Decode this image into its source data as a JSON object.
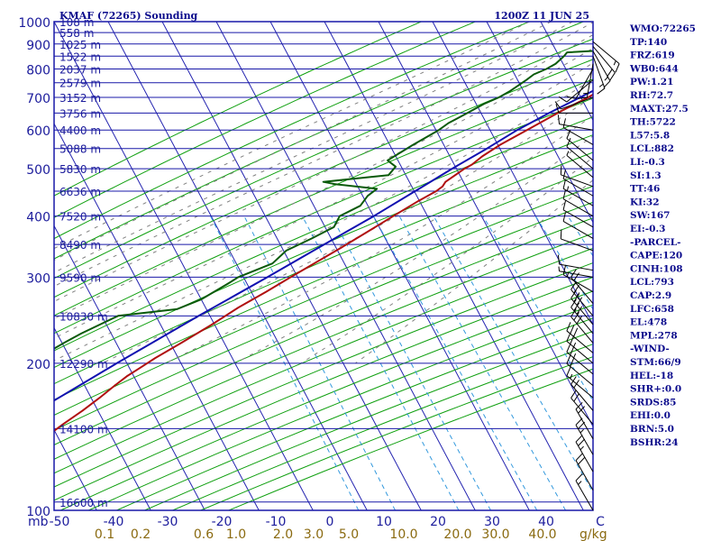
{
  "header": {
    "station": "KMAF (72265) Sounding",
    "time": "1200Z 11 JUN 25"
  },
  "colors": {
    "frame": "#1818a8",
    "isotherm": "#2424b0",
    "dry_adiabat": "#10a010",
    "moist_adiabat": "#808080",
    "mixing_ratio": "#3399dd",
    "temperature": "#b01010",
    "dewpoint": "#0a5a0a",
    "parcel": "#1010b0",
    "wind": "#000000",
    "text": "#0a0a8c",
    "mixing_label": "#8a6a10"
  },
  "chart_data": {
    "type": "skew-t",
    "title": "KMAF (72265) Sounding",
    "x_unit": "C",
    "y_unit": "mb",
    "ylim": [
      1000,
      100
    ],
    "xlim_surface": [
      -50,
      55
    ],
    "isobars": [
      100,
      200,
      300,
      400,
      500,
      600,
      700,
      800,
      900,
      1000
    ],
    "isotherm_labels": [
      "-50",
      "-40",
      "-30",
      "-20",
      "-10",
      "0",
      "10",
      "20",
      "30",
      "40",
      "C"
    ],
    "pressure_axis_label": "mb",
    "height_levels": [
      {
        "p": 104,
        "label": "16600 m"
      },
      {
        "p": 147,
        "label": "14100 m"
      },
      {
        "p": 200,
        "label": "12290 m"
      },
      {
        "p": 250,
        "label": "10830 m"
      },
      {
        "p": 300,
        "label": "9590 m"
      },
      {
        "p": 350,
        "label": "8490 m"
      },
      {
        "p": 400,
        "label": "7520 m"
      },
      {
        "p": 450,
        "label": "6636 m"
      },
      {
        "p": 500,
        "label": "5830 m"
      },
      {
        "p": 550,
        "label": "5088 m"
      },
      {
        "p": 600,
        "label": "4400 m"
      },
      {
        "p": 650,
        "label": "3756 m"
      },
      {
        "p": 700,
        "label": "3152 m"
      },
      {
        "p": 750,
        "label": "2579 m"
      },
      {
        "p": 800,
        "label": "2037 m"
      },
      {
        "p": 850,
        "label": "1522 m"
      },
      {
        "p": 900,
        "label": "1025 m"
      },
      {
        "p": 950,
        "label": "558 m"
      },
      {
        "p": 1000,
        "label": "108 m"
      }
    ],
    "mixing_ratio_labels": [
      "0.1",
      "0.2",
      "0.6",
      "1.0",
      "2.0",
      "3.0",
      "5.0",
      "10.0",
      "20.0",
      "30.0",
      "40.0"
    ],
    "mixing_ratio_unit": "g/kg",
    "mixing_ratio_values": [
      0.1,
      0.2,
      0.6,
      1.0,
      2.0,
      3.0,
      5.0,
      10.0,
      20.0,
      30.0,
      40.0
    ],
    "series": [
      {
        "key": "temperature",
        "points": [
          [
            916,
            23.5
          ],
          [
            900,
            22.5
          ],
          [
            860,
            19.5
          ],
          [
            830,
            17.5
          ],
          [
            800,
            15.5
          ],
          [
            760,
            12.7
          ],
          [
            720,
            9.6
          ],
          [
            700,
            8.3
          ],
          [
            660,
            5.0
          ],
          [
            640,
            3.4
          ],
          [
            600,
            0.2
          ],
          [
            560,
            -3.3
          ],
          [
            530,
            -5.5
          ],
          [
            510,
            -6.6
          ],
          [
            500,
            -7.6
          ],
          [
            470,
            -9.8
          ],
          [
            460,
            -9.9
          ],
          [
            450,
            -10.6
          ],
          [
            430,
            -12.9
          ],
          [
            400,
            -16.1
          ],
          [
            370,
            -19.5
          ],
          [
            345,
            -22.6
          ],
          [
            320,
            -26.1
          ],
          [
            300,
            -29.1
          ],
          [
            280,
            -32.2
          ],
          [
            260,
            -35.8
          ],
          [
            240,
            -39.0
          ],
          [
            220,
            -42.9
          ],
          [
            205,
            -46.2
          ],
          [
            195,
            -48.2
          ],
          [
            188,
            -49.7
          ],
          [
            180,
            -51.0
          ],
          [
            170,
            -52.6
          ],
          [
            160,
            -54.5
          ],
          [
            150,
            -56.8
          ],
          [
            140,
            -59.0
          ],
          [
            130,
            -62.2
          ],
          [
            126,
            -63.2
          ],
          [
            119,
            -62.5
          ],
          [
            112,
            -60.3
          ],
          [
            106,
            -58.5
          ],
          [
            101,
            -56.8
          ]
        ]
      },
      {
        "key": "dewpoint",
        "points": [
          [
            916,
            13.0
          ],
          [
            900,
            12.5
          ],
          [
            880,
            12.1
          ],
          [
            865,
            0.0
          ],
          [
            850,
            -0.2
          ],
          [
            820,
            -1.0
          ],
          [
            800,
            -2.2
          ],
          [
            780,
            -4.0
          ],
          [
            760,
            -4.8
          ],
          [
            720,
            -6.8
          ],
          [
            700,
            -8.2
          ],
          [
            680,
            -10.2
          ],
          [
            650,
            -12.5
          ],
          [
            620,
            -15.0
          ],
          [
            600,
            -16.1
          ],
          [
            560,
            -19.4
          ],
          [
            520,
            -22.6
          ],
          [
            505,
            -20.5
          ],
          [
            485,
            -21.0
          ],
          [
            470,
            -32.4
          ],
          [
            465,
            -30.0
          ],
          [
            455,
            -21.8
          ],
          [
            440,
            -22.8
          ],
          [
            420,
            -23.2
          ],
          [
            400,
            -26.0
          ],
          [
            380,
            -26.0
          ],
          [
            360,
            -29.0
          ],
          [
            340,
            -32.5
          ],
          [
            320,
            -33.8
          ],
          [
            300,
            -38.8
          ],
          [
            290,
            -40.2
          ],
          [
            270,
            -43.5
          ],
          [
            258,
            -47.0
          ],
          [
            250,
            -57.2
          ],
          [
            240,
            -59.7
          ],
          [
            230,
            -62.3
          ],
          [
            220,
            -64.6
          ],
          [
            210,
            -66.8
          ],
          [
            200,
            -68.4
          ],
          [
            190,
            -70.5
          ],
          [
            182,
            -70.8
          ],
          [
            174,
            -71.2
          ],
          [
            165,
            -71.2
          ],
          [
            160,
            -72.5
          ],
          [
            150,
            -74.8
          ],
          [
            140,
            -77.6
          ],
          [
            130,
            -80.0
          ],
          [
            125,
            -80.8
          ],
          [
            119,
            -79.9
          ],
          [
            113,
            -78.3
          ],
          [
            108,
            -77.1
          ],
          [
            103,
            -75.6
          ],
          [
            100,
            -74.5
          ]
        ]
      },
      {
        "key": "parcel",
        "points": [
          [
            890,
            21.7
          ],
          [
            880,
            19.0
          ],
          [
            860,
            16.9
          ],
          [
            840,
            15.3
          ],
          [
            820,
            15.3
          ],
          [
            800,
            14.3
          ],
          [
            750,
            10.8
          ],
          [
            700,
            6.8
          ],
          [
            650,
            2.6
          ],
          [
            600,
            -1.6
          ],
          [
            550,
            -5.4
          ],
          [
            500,
            -9.9
          ],
          [
            450,
            -14.5
          ],
          [
            400,
            -19.7
          ],
          [
            350,
            -26.1
          ],
          [
            300,
            -33.4
          ],
          [
            250,
            -42.3
          ],
          [
            200,
            -52.8
          ],
          [
            160,
            -62.9
          ],
          [
            130,
            -71.5
          ],
          [
            110,
            -78.5
          ]
        ]
      }
    ],
    "wind_barbs": [
      {
        "p": 910,
        "dir": 130,
        "spd": 15
      },
      {
        "p": 890,
        "dir": 140,
        "spd": 20
      },
      {
        "p": 870,
        "dir": 150,
        "spd": 15
      },
      {
        "p": 850,
        "dir": 160,
        "spd": 15
      },
      {
        "p": 820,
        "dir": 190,
        "spd": 15
      },
      {
        "p": 800,
        "dir": 210,
        "spd": 10
      },
      {
        "p": 760,
        "dir": 230,
        "spd": 10
      },
      {
        "p": 700,
        "dir": 250,
        "spd": 10
      },
      {
        "p": 650,
        "dir": 270,
        "spd": 10
      },
      {
        "p": 600,
        "dir": 280,
        "spd": 10
      },
      {
        "p": 560,
        "dir": 300,
        "spd": 10
      },
      {
        "p": 520,
        "dir": 310,
        "spd": 10
      },
      {
        "p": 500,
        "dir": 310,
        "spd": 10
      },
      {
        "p": 480,
        "dir": 310,
        "spd": 5
      },
      {
        "p": 460,
        "dir": 290,
        "spd": 10
      },
      {
        "p": 440,
        "dir": 300,
        "spd": 10
      },
      {
        "p": 420,
        "dir": 300,
        "spd": 15
      },
      {
        "p": 400,
        "dir": 300,
        "spd": 10
      },
      {
        "p": 380,
        "dir": 300,
        "spd": 10
      },
      {
        "p": 360,
        "dir": 300,
        "spd": 10
      },
      {
        "p": 340,
        "dir": 290,
        "spd": 10
      },
      {
        "p": 310,
        "dir": 280,
        "spd": 10
      },
      {
        "p": 300,
        "dir": 280,
        "spd": 5
      },
      {
        "p": 280,
        "dir": 300,
        "spd": 15
      },
      {
        "p": 265,
        "dir": 320,
        "spd": 20
      },
      {
        "p": 250,
        "dir": 320,
        "spd": 25
      },
      {
        "p": 240,
        "dir": 320,
        "spd": 30
      },
      {
        "p": 230,
        "dir": 320,
        "spd": 30
      },
      {
        "p": 220,
        "dir": 320,
        "spd": 30
      },
      {
        "p": 210,
        "dir": 310,
        "spd": 30
      },
      {
        "p": 200,
        "dir": 310,
        "spd": 25
      },
      {
        "p": 190,
        "dir": 310,
        "spd": 25
      },
      {
        "p": 180,
        "dir": 310,
        "spd": 20
      },
      {
        "p": 170,
        "dir": 310,
        "spd": 15
      },
      {
        "p": 160,
        "dir": 320,
        "spd": 20
      },
      {
        "p": 150,
        "dir": 320,
        "spd": 20
      },
      {
        "p": 140,
        "dir": 330,
        "spd": 20
      },
      {
        "p": 130,
        "dir": 330,
        "spd": 25
      },
      {
        "p": 120,
        "dir": 330,
        "spd": 25
      },
      {
        "p": 110,
        "dir": 330,
        "spd": 20
      },
      {
        "p": 100,
        "dir": 330,
        "spd": 15
      }
    ]
  },
  "indices": [
    "WMO:72265",
    "TP:140",
    "FRZ:619",
    "WB0:644",
    "PW:1.21",
    "RH:72.7",
    "MAXT:27.5",
    "TH:5722",
    "L57:5.8",
    "LCL:882",
    "LI:-0.3",
    "SI:1.3",
    "TT:46",
    "KI:32",
    "SW:167",
    "EI:-0.3",
    "-PARCEL-",
    "CAPE:120",
    "CINH:108",
    "LCL:793",
    "CAP:2.9",
    "LFC:658",
    "EL:478",
    "MPL:278",
    "-WIND-",
    "STM:66/9",
    "HEL:-18",
    "SHR+:0.0",
    "SRDS:85",
    "EHI:0.0",
    "BRN:5.0",
    "BSHR:24"
  ]
}
